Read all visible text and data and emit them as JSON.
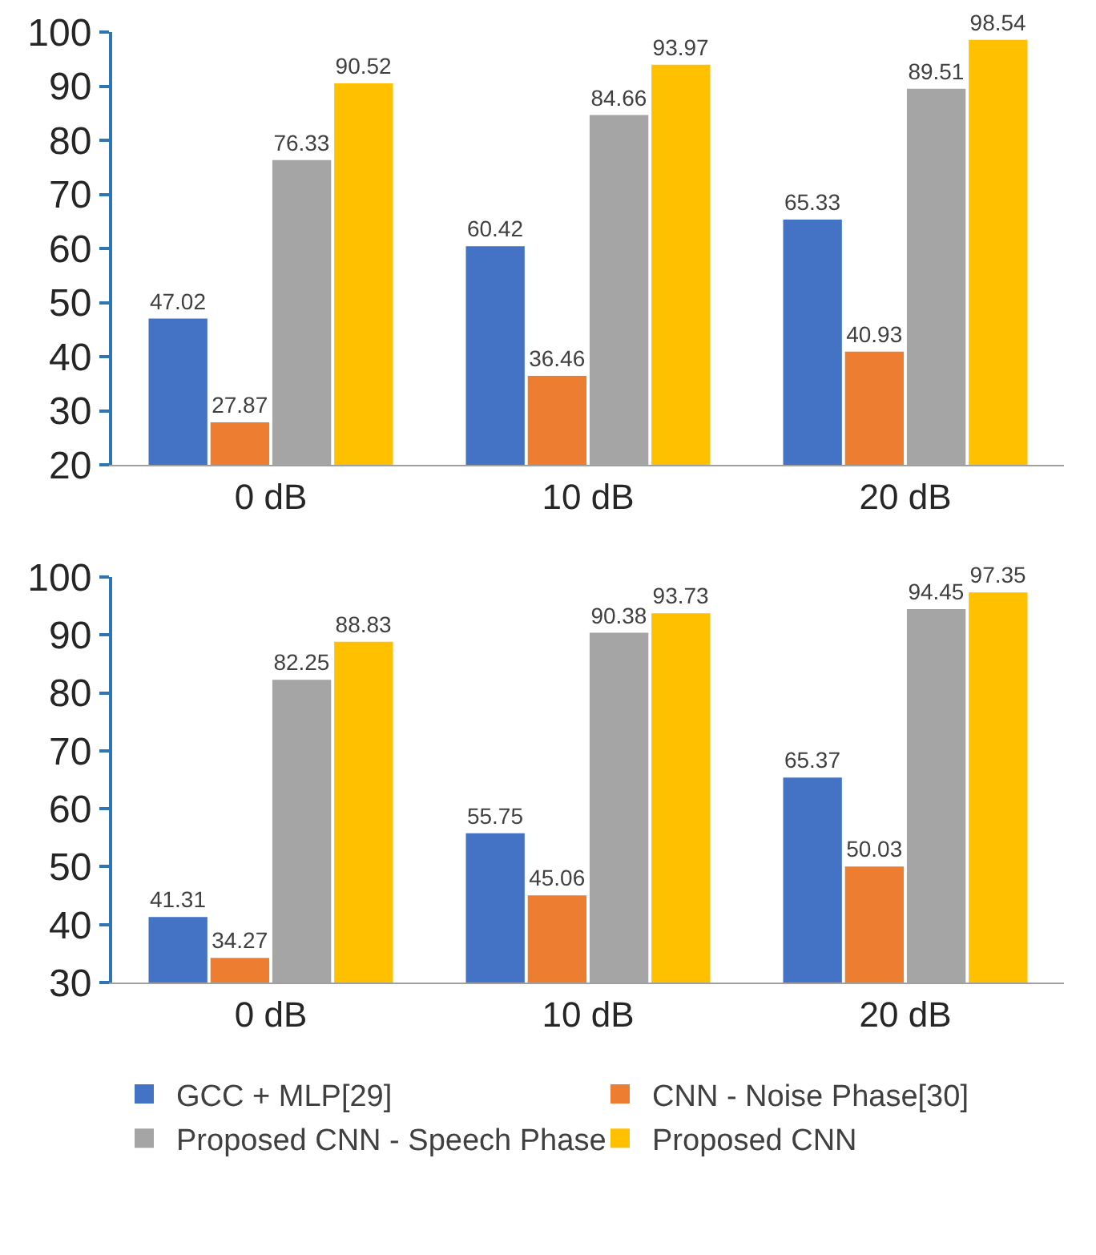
{
  "chart_data": [
    {
      "type": "bar",
      "categories": [
        "0 dB",
        "10 dB",
        "20 dB"
      ],
      "ylim": [
        20,
        100
      ],
      "yticks": [
        20,
        30,
        40,
        50,
        60,
        70,
        80,
        90,
        100
      ],
      "grid": false,
      "legend": false,
      "data_labels": true,
      "series": [
        {
          "color": "#4472c4",
          "values": [
            47.02,
            60.42,
            65.33
          ]
        },
        {
          "color": "#ed7d31",
          "values": [
            27.87,
            36.46,
            40.93
          ]
        },
        {
          "color": "#a5a5a5",
          "values": [
            76.33,
            84.66,
            89.51
          ]
        },
        {
          "color": "#ffc000",
          "values": [
            90.52,
            93.97,
            98.54
          ]
        }
      ]
    },
    {
      "type": "bar",
      "categories": [
        "0 dB",
        "10 dB",
        "20 dB"
      ],
      "ylim": [
        30,
        100
      ],
      "yticks": [
        30,
        40,
        50,
        60,
        70,
        80,
        90,
        100
      ],
      "grid": false,
      "legend": "bottom",
      "data_labels": true,
      "series": [
        {
          "name": "GCC + MLP[29]",
          "color": "#4472c4",
          "values": [
            41.31,
            55.75,
            65.37
          ]
        },
        {
          "name": "CNN - Noise Phase[30]",
          "color": "#ed7d31",
          "values": [
            34.27,
            45.06,
            50.03
          ]
        },
        {
          "name": "Proposed CNN - Speech Phase",
          "color": "#a5a5a5",
          "values": [
            82.25,
            90.38,
            94.45
          ]
        },
        {
          "name": "Proposed CNN",
          "color": "#ffc000",
          "values": [
            88.83,
            93.73,
            97.35
          ]
        }
      ]
    }
  ]
}
